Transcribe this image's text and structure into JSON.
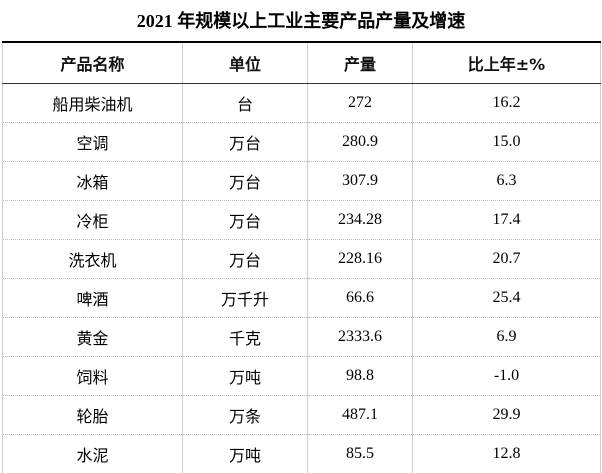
{
  "title": "2021 年规模以上工业主要产品产量及增速",
  "table": {
    "header": [
      "产品名称",
      "单位",
      "产量",
      "比上年±%"
    ],
    "rows": [
      [
        "船用柴油机",
        "台",
        "272",
        "16.2"
      ],
      [
        "空调",
        "万台",
        "280.9",
        "15.0"
      ],
      [
        "冰箱",
        "万台",
        "307.9",
        "6.3"
      ],
      [
        "冷柜",
        "万台",
        "234.28",
        "17.4"
      ],
      [
        "洗衣机",
        "万台",
        "228.16",
        "20.7"
      ],
      [
        "啤酒",
        "万千升",
        "66.6",
        "25.4"
      ],
      [
        "黄金",
        "千克",
        "2333.6",
        "6.9"
      ],
      [
        "饲料",
        "万吨",
        "98.8",
        "-1.0"
      ],
      [
        "轮胎",
        "万条",
        "487.1",
        "29.9"
      ],
      [
        "水泥",
        "万吨",
        "85.5",
        "12.8"
      ]
    ]
  }
}
